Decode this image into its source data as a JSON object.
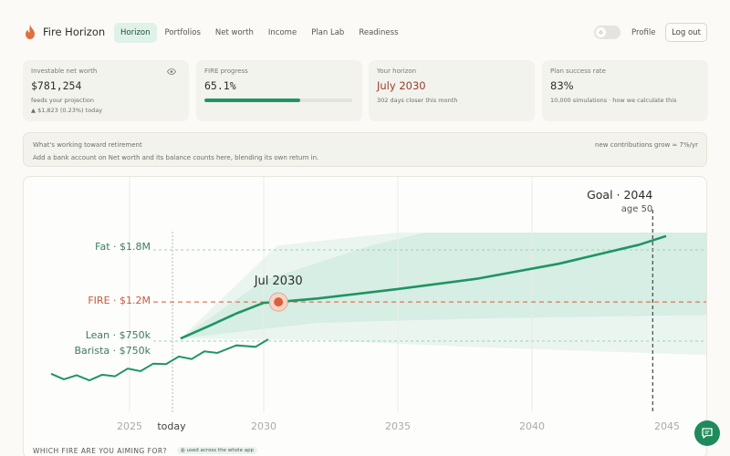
{
  "header": {
    "brand": "Fire Horizon",
    "nav": [
      {
        "label": "Horizon",
        "active": true
      },
      {
        "label": "Portfolios",
        "active": false
      },
      {
        "label": "Net worth",
        "active": false
      },
      {
        "label": "Income",
        "active": false
      },
      {
        "label": "Plan Lab",
        "active": false
      },
      {
        "label": "Readiness",
        "active": false
      }
    ],
    "theme_icon": "sun-icon",
    "profile": "Profile",
    "logout": "Log out"
  },
  "cards": {
    "net_worth": {
      "label": "Investable net worth",
      "value": "$781,254",
      "sub": "feeds your projection",
      "delta": "▲ $1,823  (0.23%) today"
    },
    "fire_progress": {
      "label": "FIRE progress",
      "value": "65.1%",
      "progress": 0.651
    },
    "horizon": {
      "label": "Your horizon",
      "value": "July 2030",
      "sub": "302 days closer this month"
    },
    "success": {
      "label": "Plan success rate",
      "value": "83%",
      "sub": "10,000 simulations · how we calculate this"
    }
  },
  "info": {
    "title": "What's working toward retirement",
    "desc": "Add a bank account on Net worth and its balance counts here, blending its own return in.",
    "right": "new contributions grow ≈ 7%/yr"
  },
  "chart_data": {
    "type": "line",
    "x_ticks": [
      "2025",
      "today",
      "2030",
      "2035",
      "2040",
      "2045"
    ],
    "targets": [
      {
        "name": "Fat · $1.8M",
        "value": 1800000
      },
      {
        "name": "FIRE · $1.2M",
        "value": 1200000
      },
      {
        "name": "Lean · $750k",
        "value": 750000
      },
      {
        "name": "Barista · $750k",
        "value": 750000
      }
    ],
    "fire_crossing_label": "Jul 2030",
    "goal_label": "Goal · 2044",
    "goal_sub": "age 50",
    "history": [
      [
        2023.5,
        420000
      ],
      [
        2023.7,
        410000
      ],
      [
        2023.9,
        405000
      ],
      [
        2024.1,
        400000
      ],
      [
        2024.3,
        410000
      ],
      [
        2024.5,
        440000
      ],
      [
        2024.7,
        470000
      ],
      [
        2024.9,
        490000
      ],
      [
        2025.1,
        520000
      ],
      [
        2025.3,
        560000
      ],
      [
        2025.5,
        590000
      ],
      [
        2025.7,
        610000
      ],
      [
        2025.9,
        640000
      ],
      [
        2026.1,
        670000
      ],
      [
        2026.4,
        700000
      ],
      [
        2026.7,
        730000
      ],
      [
        2026.9,
        760000
      ]
    ],
    "projection": [
      [
        2026.9,
        780000
      ],
      [
        2028,
        930000
      ],
      [
        2029,
        1070000
      ],
      [
        2030,
        1190000
      ],
      [
        2030.55,
        1200000
      ],
      [
        2032,
        1240000
      ],
      [
        2035,
        1350000
      ],
      [
        2038,
        1470000
      ],
      [
        2041,
        1640000
      ],
      [
        2044,
        1860000
      ],
      [
        2045,
        1960000
      ]
    ],
    "colors": {
      "line": "#1f9466",
      "fire": "#e07650",
      "band": "#bfe6d5",
      "marker": "#d9603d"
    }
  },
  "footer": {
    "question": "WHICH FIRE ARE YOU AIMING FOR?",
    "chip": "used across the whole app"
  }
}
